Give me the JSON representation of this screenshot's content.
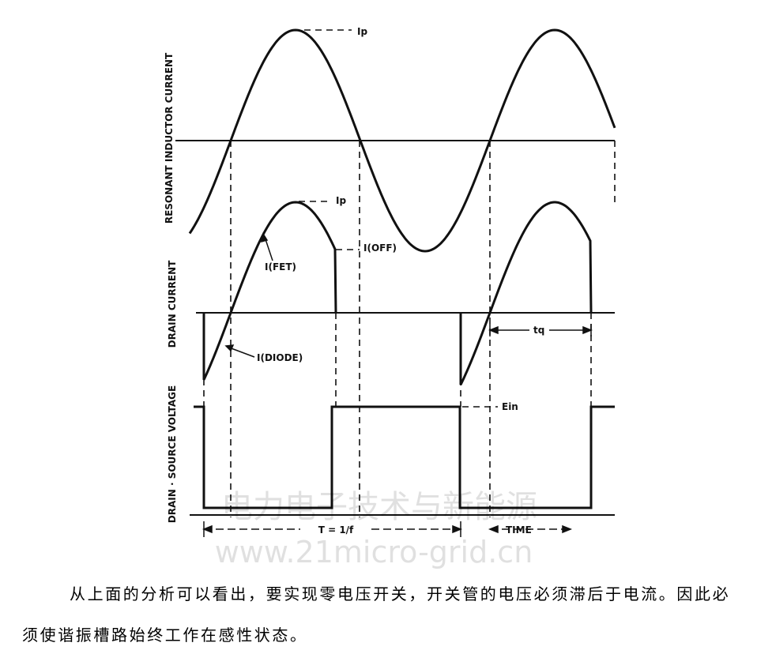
{
  "diagram": {
    "axis_labels": [
      "RESONANT INDUCTOR CURRENT",
      "DRAIN CURRENT",
      "DRAIN · SOURCE VOLTAGE"
    ],
    "annotations": {
      "ip_top": "Ip",
      "ip_mid": "Ip",
      "i_fet": "I(FET)",
      "i_off": "I(OFF)",
      "i_diode": "I(DIODE)",
      "tq": "tq",
      "ein": "Ein",
      "period": "T = 1/f",
      "time": "TIME"
    }
  },
  "watermark": {
    "title": "电力电子技术与新能源",
    "url": "www.21micro-grid.cn"
  },
  "paragraph": "从上面的分析可以看出，要实现零电压开关，开关管的电压必须滞后于电流。因此必须使谐振槽路始终工作在感性状态。"
}
